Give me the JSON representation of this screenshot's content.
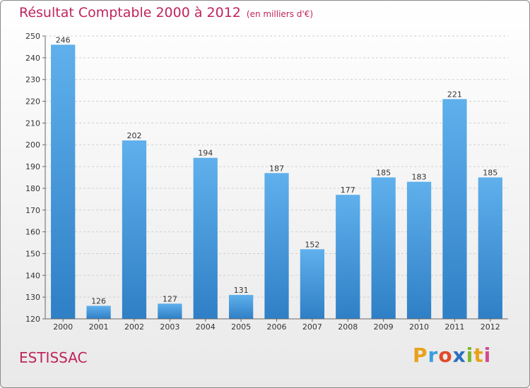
{
  "chart_data": {
    "type": "bar",
    "title": "Résultat Comptable 2000 à 2012",
    "subtitle": "(en milliers d'€)",
    "categories": [
      "2000",
      "2001",
      "2002",
      "2003",
      "2004",
      "2005",
      "2006",
      "2007",
      "2008",
      "2009",
      "2010",
      "2011",
      "2012"
    ],
    "values": [
      246,
      126,
      202,
      127,
      194,
      131,
      187,
      152,
      177,
      185,
      183,
      221,
      185
    ],
    "ylim": [
      120,
      250
    ],
    "yticks": [
      120,
      130,
      140,
      150,
      160,
      170,
      180,
      190,
      200,
      210,
      220,
      230,
      240,
      250
    ],
    "xlabel": "",
    "ylabel": "",
    "grid": true,
    "bar_color": "#4fa3e3"
  },
  "location": "ESTISSAC",
  "brand": "Proxiti",
  "colors": {
    "title": "#c0245c",
    "bar_top": "#5fb0ec",
    "bar_bottom": "#2f7fc6"
  }
}
